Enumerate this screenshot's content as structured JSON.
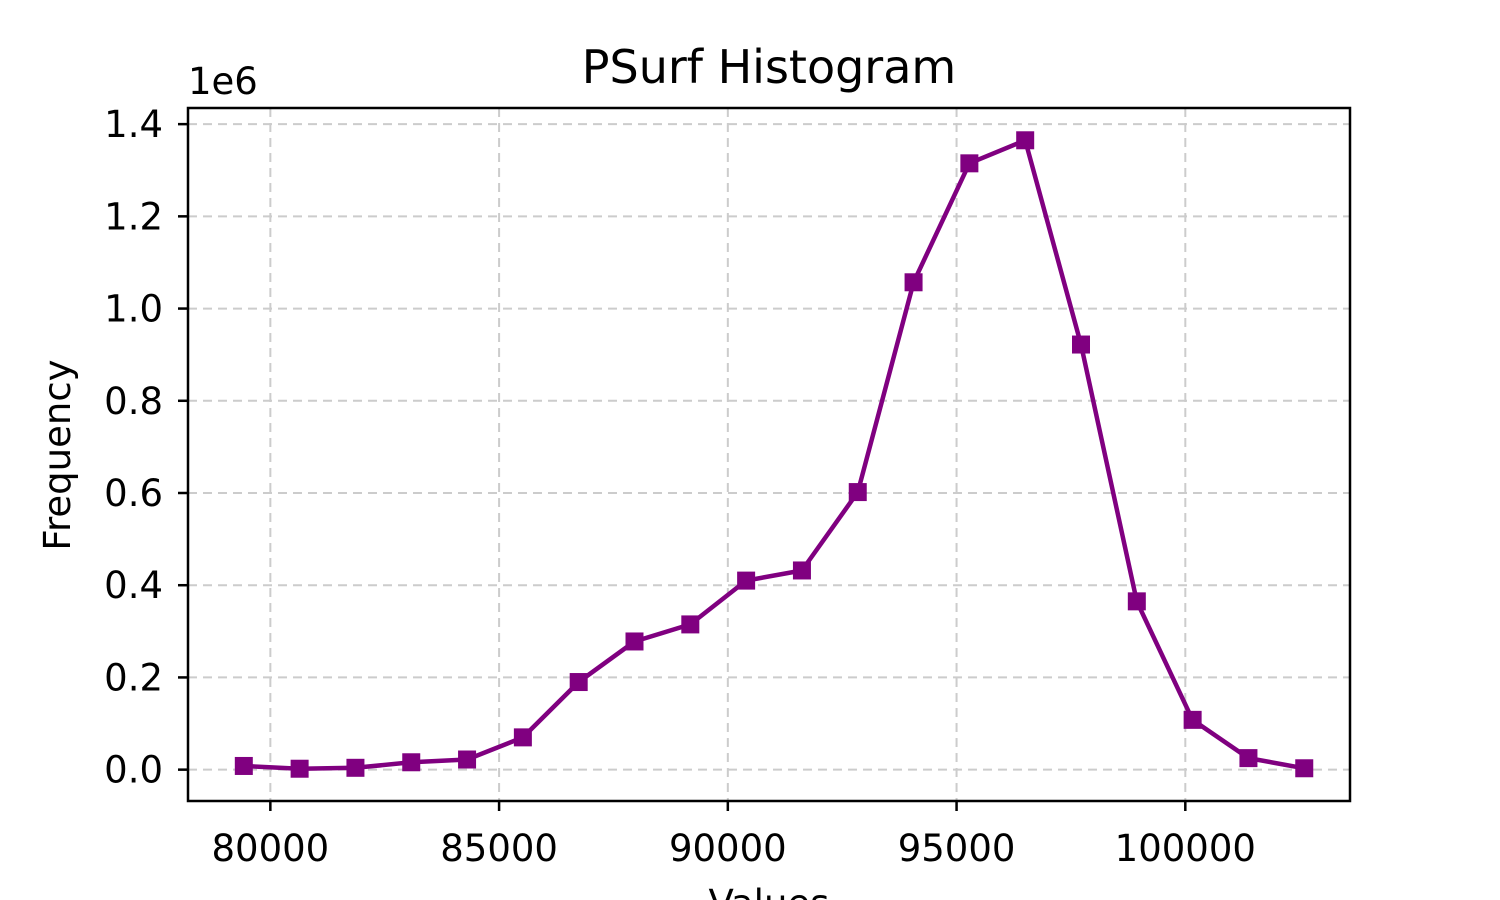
{
  "chart_data": {
    "type": "line",
    "title": "PSurf Histogram",
    "xlabel": "Values",
    "ylabel": "Frequency",
    "y_offset_label": "1e6",
    "xlim": [
      78200,
      103600
    ],
    "ylim": [
      -0.068,
      1.435
    ],
    "xticks": [
      80000,
      85000,
      90000,
      95000,
      100000
    ],
    "xtick_labels": [
      "80000",
      "85000",
      "90000",
      "95000",
      "100000"
    ],
    "yticks": [
      0.0,
      0.2,
      0.4,
      0.6,
      0.8,
      1.0,
      1.2,
      1.4
    ],
    "ytick_labels": [
      "0.0",
      "0.2",
      "0.4",
      "0.6",
      "0.8",
      "1.0",
      "1.2",
      "1.4"
    ],
    "grid": true,
    "series": [
      {
        "color": "#800080",
        "marker": "square",
        "x": [
          79420,
          80640,
          81860,
          83080,
          84300,
          85520,
          86740,
          87960,
          89180,
          90400,
          91620,
          92840,
          94060,
          95280,
          96500,
          97720,
          98940,
          100160,
          101380,
          102600
        ],
        "y": [
          0.008,
          0.002,
          0.004,
          0.016,
          0.022,
          0.07,
          0.19,
          0.278,
          0.315,
          0.41,
          0.432,
          0.602,
          1.057,
          1.315,
          1.365,
          0.922,
          0.365,
          0.108,
          0.025,
          0.003
        ]
      }
    ]
  }
}
